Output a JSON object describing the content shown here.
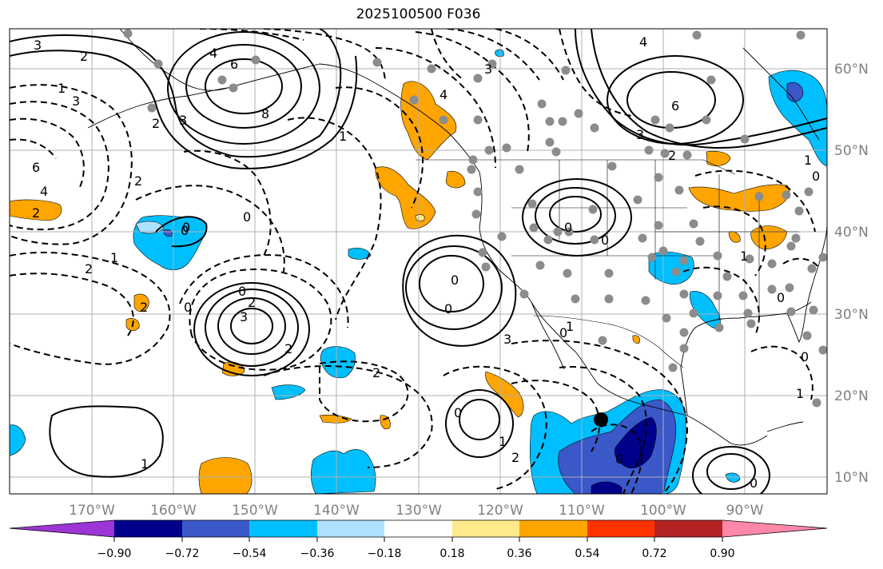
{
  "title": "2025100500 F036",
  "lon_labels": [
    "170°W",
    "160°W",
    "150°W",
    "140°W",
    "130°W",
    "120°W",
    "110°W",
    "100°W",
    "90°W"
  ],
  "lat_labels": [
    "60°N",
    "50°N",
    "40°N",
    "30°N",
    "20°N",
    "10°N"
  ],
  "colorbar": {
    "ticks": [
      "−0.90",
      "−0.72",
      "−0.54",
      "−0.36",
      "−0.18",
      "0.18",
      "0.36",
      "0.54",
      "0.72",
      "0.90"
    ],
    "colors": [
      "#9b35d6",
      "#00008b",
      "#3b58c9",
      "#00bfff",
      "#ade1ff",
      "#ffffff",
      "#ffe98a",
      "#ffa500",
      "#ff3300",
      "#b22222",
      "#ff88aa"
    ]
  },
  "contour_labels": [
    "3",
    "2",
    "1",
    "3",
    "4",
    "6",
    "8",
    "3",
    "2",
    "6",
    "2",
    "4",
    "2",
    "2",
    "1",
    "2",
    "0",
    "0",
    "2",
    "0",
    "0",
    "3",
    "2",
    "4",
    "3",
    "1",
    "4",
    "6",
    "3",
    "2",
    "1",
    "0",
    "0",
    "0",
    "0",
    "3",
    "2",
    "0",
    "1",
    "2",
    "1",
    "0",
    "0",
    "0",
    "0",
    "1",
    "0",
    "1",
    "0",
    "0",
    "1"
  ],
  "colors": {
    "gridline": "#b0b0b0",
    "tick_label": "#808080",
    "point": "#8c8c8c"
  }
}
